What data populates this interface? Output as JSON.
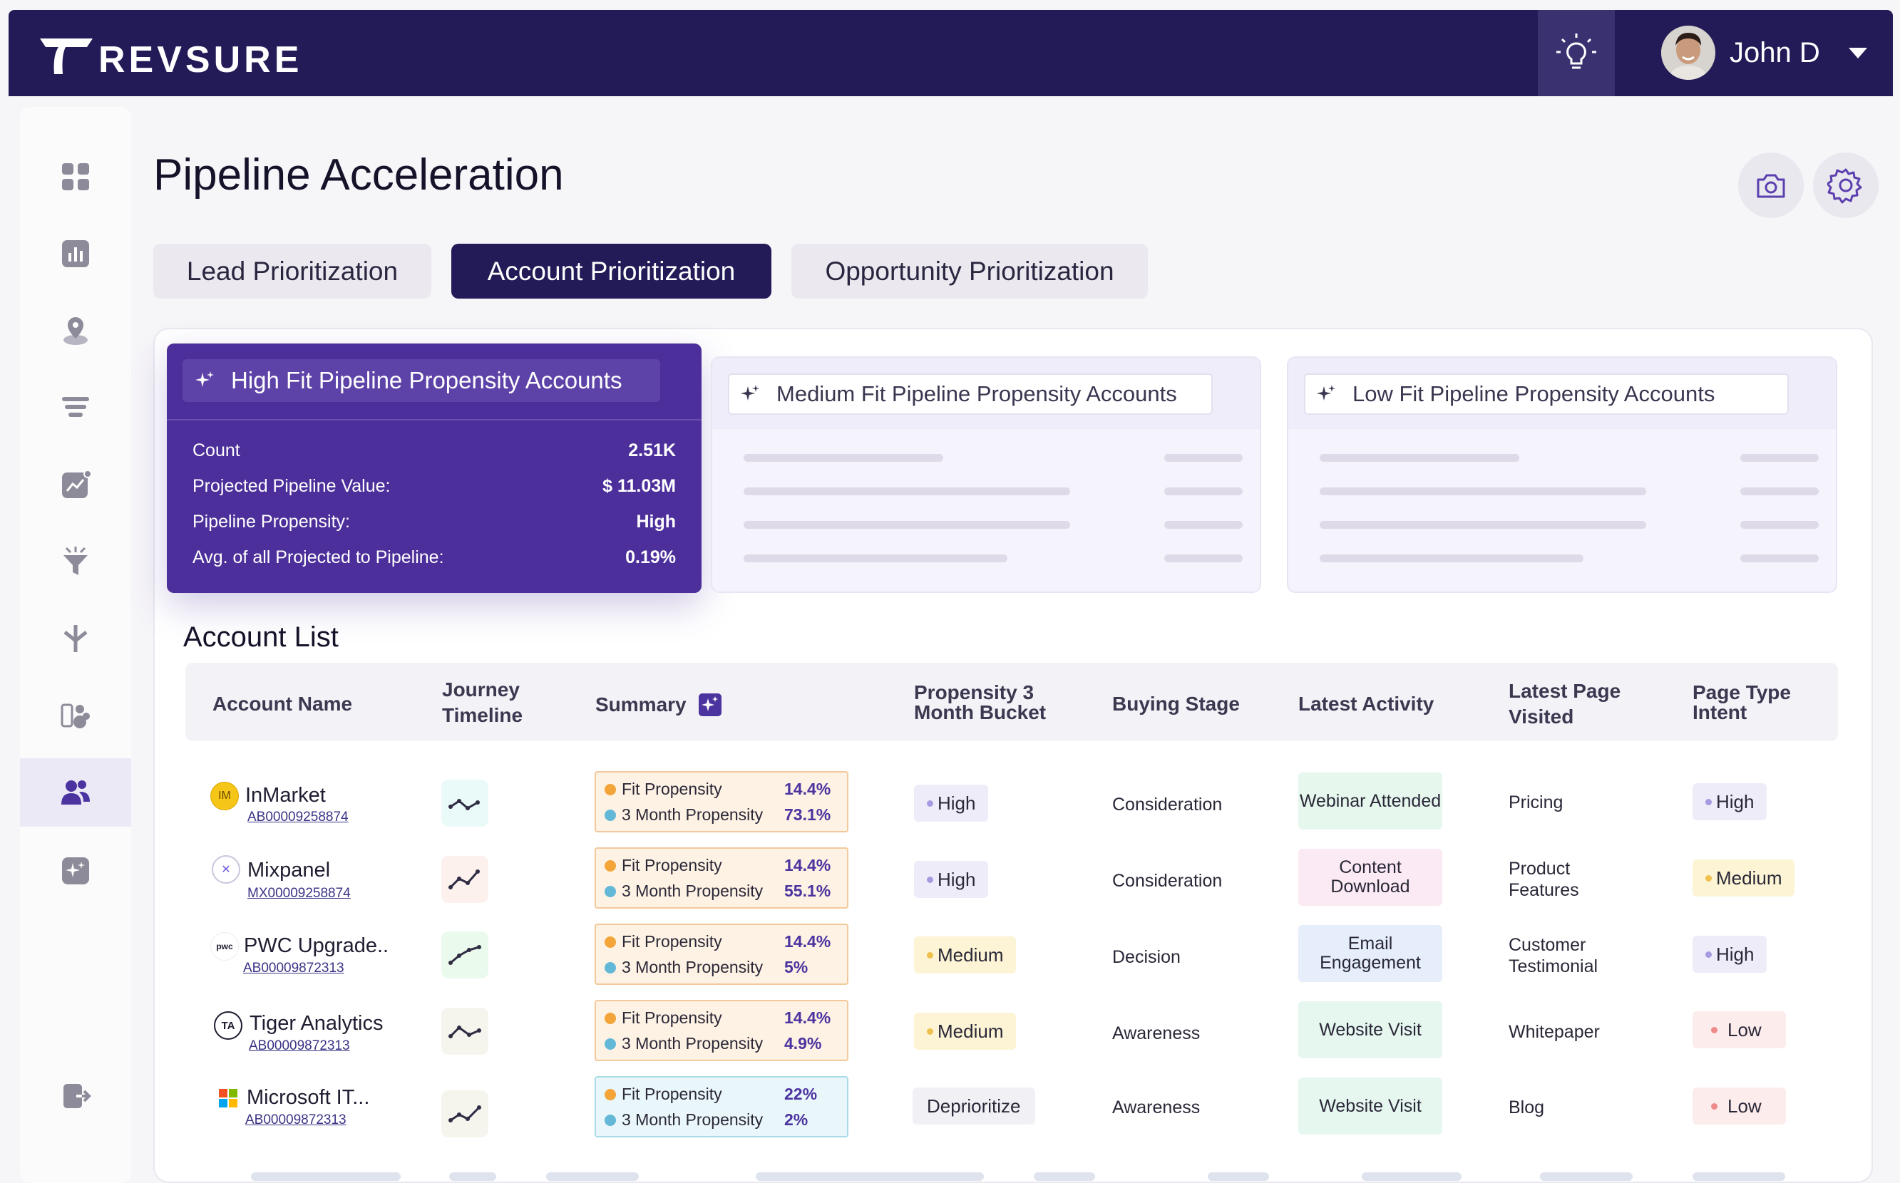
{
  "app": {
    "brand": "REVSURE",
    "user_name": "John D"
  },
  "page": {
    "title": "Pipeline Acceleration"
  },
  "tabs": [
    {
      "label": "Lead Prioritization"
    },
    {
      "label": "Account Prioritization"
    },
    {
      "label": "Opportunity Prioritization"
    }
  ],
  "active_tab": "Account Prioritization",
  "segments": {
    "high": {
      "title": "High Fit Pipeline Propensity Accounts",
      "rows": [
        {
          "label": "Count",
          "value": "2.51K"
        },
        {
          "label": "Projected Pipeline Value:",
          "value": "$ 11.03M"
        },
        {
          "label": "Pipeline Propensity:",
          "value": "High"
        },
        {
          "label": "Avg. of all Projected to Pipeline:",
          "value": "0.19%"
        }
      ]
    },
    "medium": {
      "title": "Medium Fit Pipeline Propensity Accounts"
    },
    "low": {
      "title": "Low Fit Pipeline Propensity Accounts"
    }
  },
  "account_list": {
    "title": "Account List",
    "columns": {
      "name": "Account Name",
      "journey_1": "Journey",
      "journey_2": "Timeline",
      "summary": "Summary",
      "bucket_1": "Propensity 3",
      "bucket_2": "Month Bucket",
      "stage": "Buying Stage",
      "activity": "Latest Activity",
      "page_1": "Latest Page",
      "page_2": "Visited",
      "intent_1": "Page Type",
      "intent_2": "Intent"
    },
    "fit_label": "Fit Propensity",
    "month_label": "3 Month Propensity",
    "rows": [
      {
        "logo": "IM",
        "name": "InMarket",
        "id": "AB00009258874",
        "fit": "14.4%",
        "month": "73.1%",
        "bucket": "High",
        "stage": "Consideration",
        "activity": "Webinar Attended",
        "page": "Pricing",
        "intent": "High"
      },
      {
        "logo": "mixpanel",
        "name": "Mixpanel",
        "id": "MX00009258874",
        "fit": "14.4%",
        "month": "55.1%",
        "bucket": "High",
        "stage": "Consideration",
        "activity": "Content Download",
        "page": "Product Features",
        "intent": "Medium"
      },
      {
        "logo": "pwc",
        "name": "PWC Upgrade..",
        "id": "AB00009872313",
        "fit": "14.4%",
        "month": "5%",
        "bucket": "Medium",
        "stage": "Decision",
        "activity": "Email Engagement",
        "page": "Customer Testimonial",
        "intent": "High"
      },
      {
        "logo": "TA",
        "name": "Tiger Analytics",
        "id": "AB00009872313",
        "fit": "14.4%",
        "month": "4.9%",
        "bucket": "Medium",
        "stage": "Awareness",
        "activity": "Website Visit",
        "page": "Whitepaper",
        "intent": "Low"
      },
      {
        "logo": "microsoft",
        "name": "Microsoft IT...",
        "id": "AB00009872313",
        "fit": "22%",
        "month": "2%",
        "bucket": "Deprioritize",
        "stage": "Awareness",
        "activity": "Website Visit",
        "page": "Blog",
        "intent": "Low"
      }
    ]
  },
  "colors": {
    "topbar": "#231b57",
    "accent": "#4c2f9a",
    "active_nav": "#4b33a0"
  },
  "icons": [
    "lightbulb-icon",
    "camera-icon",
    "gear-icon",
    "sparkle-icon",
    "grid-icon",
    "bar-chart-icon",
    "location-icon",
    "layers-icon",
    "trend-icon",
    "funnel-icon",
    "merge-icon",
    "people-group-icon",
    "users-icon",
    "ai-sparkle-icon",
    "logout-icon"
  ]
}
